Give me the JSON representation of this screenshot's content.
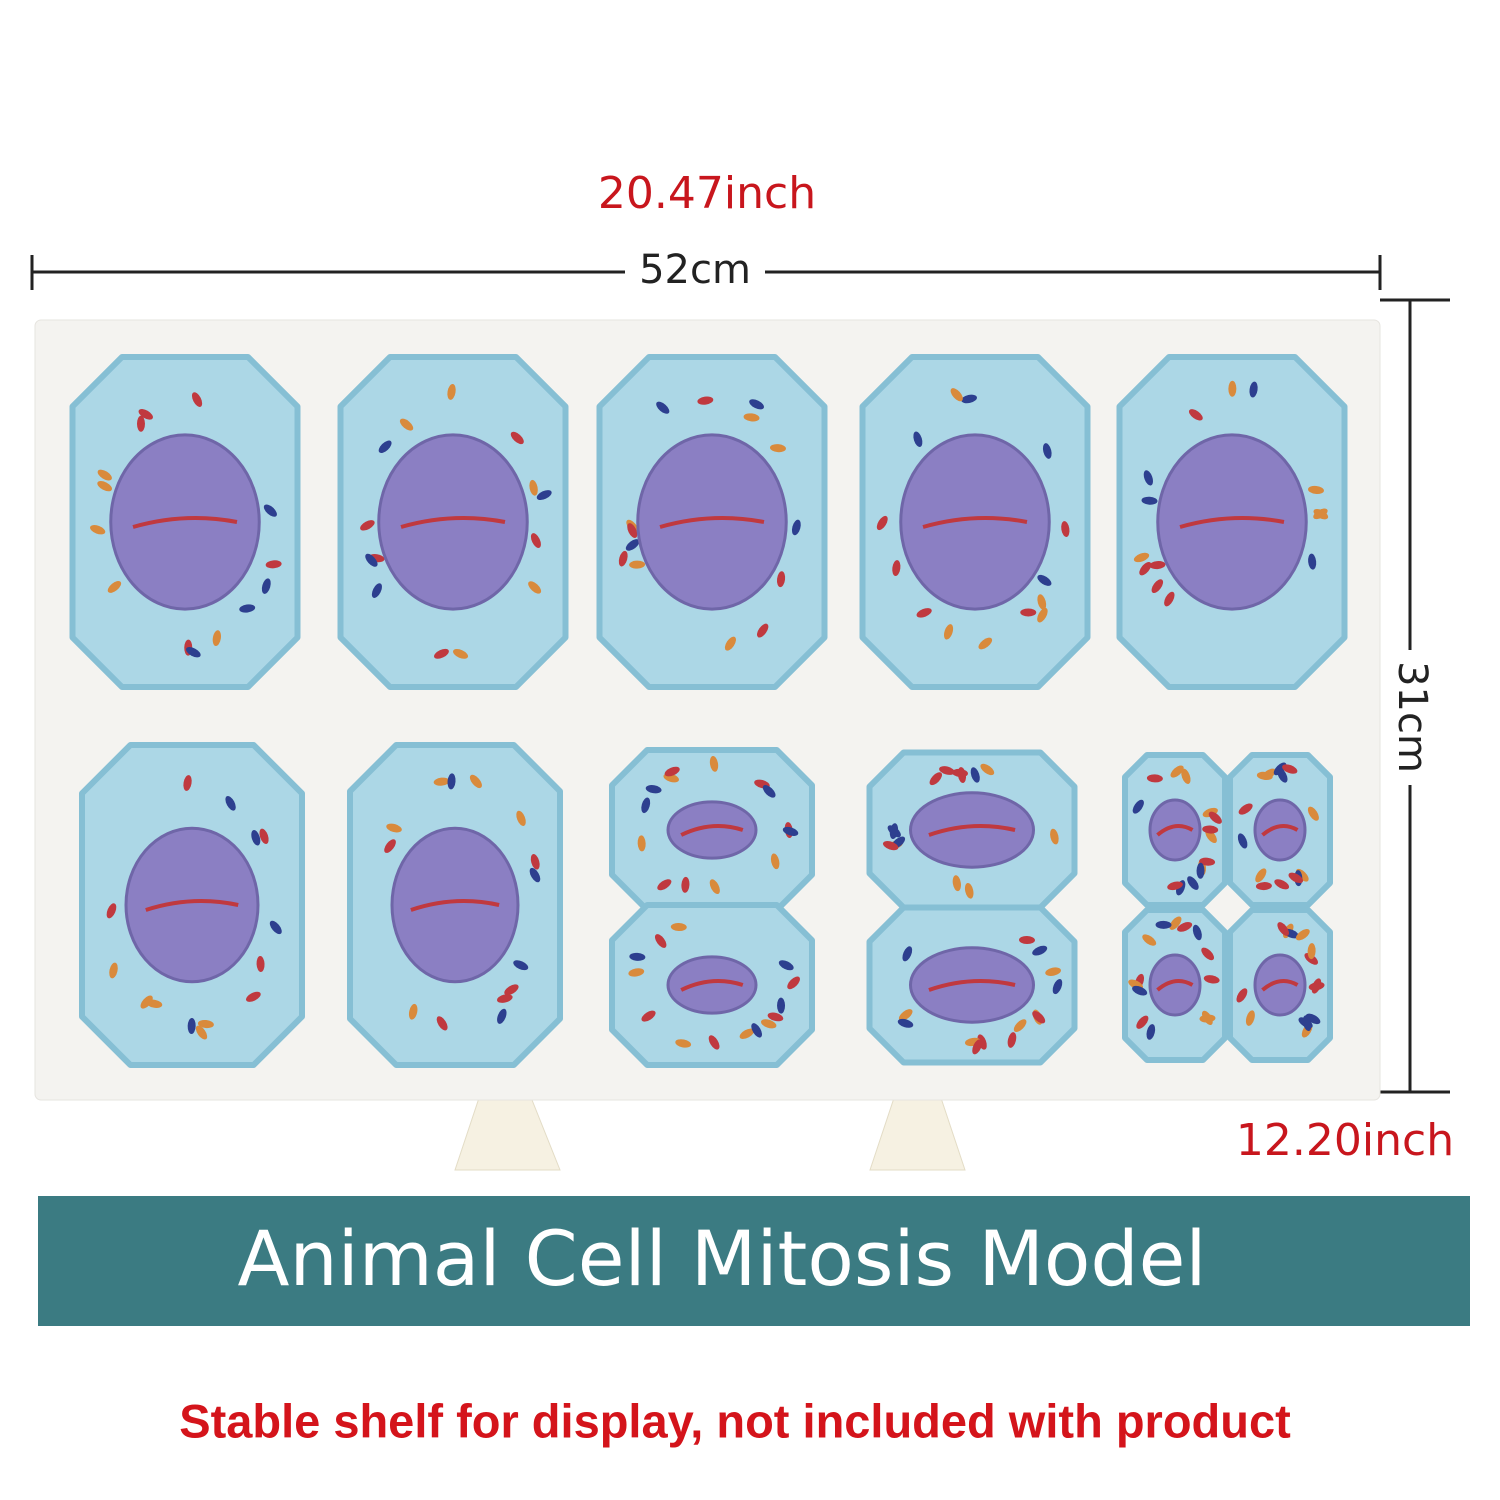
{
  "dimensions": {
    "width_inch": "20.47inch",
    "width_cm": "52cm",
    "height_cm": "31cm",
    "height_inch": "12.20inch"
  },
  "banner": {
    "title": "Animal Cell Mitosis Model"
  },
  "note": "Stable shelf for display, not included with product"
}
